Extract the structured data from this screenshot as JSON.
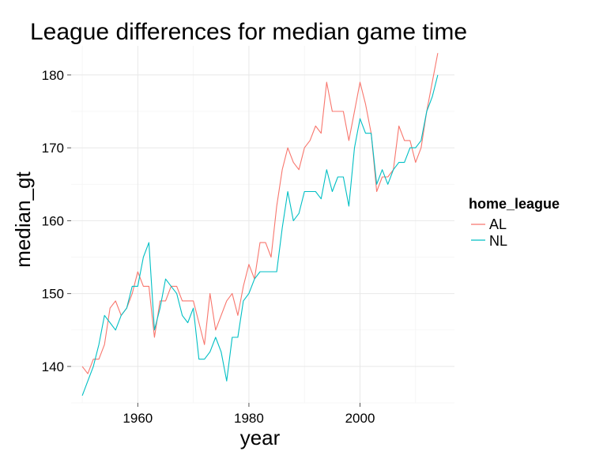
{
  "chart_data": {
    "type": "line",
    "title": "League differences for median game time",
    "xlabel": "year",
    "ylabel": "median_gt",
    "xlim": [
      1948,
      2017
    ],
    "ylim": [
      135,
      184
    ],
    "x_ticks": [
      1960,
      1980,
      2000
    ],
    "y_ticks": [
      140,
      150,
      160,
      170,
      180
    ],
    "grid": true,
    "legend": {
      "title": "home_league",
      "placement": "right"
    },
    "series": [
      {
        "name": "AL",
        "color": "#F8766D",
        "x": [
          1950,
          1951,
          1952,
          1953,
          1954,
          1955,
          1956,
          1957,
          1958,
          1959,
          1960,
          1961,
          1962,
          1963,
          1964,
          1965,
          1966,
          1967,
          1968,
          1969,
          1970,
          1971,
          1972,
          1973,
          1974,
          1975,
          1976,
          1977,
          1978,
          1979,
          1980,
          1981,
          1982,
          1983,
          1984,
          1985,
          1986,
          1987,
          1988,
          1989,
          1990,
          1991,
          1992,
          1993,
          1994,
          1995,
          1996,
          1997,
          1998,
          1999,
          2000,
          2001,
          2002,
          2003,
          2004,
          2005,
          2006,
          2007,
          2008,
          2009,
          2010,
          2011,
          2012,
          2013,
          2014
        ],
        "values": [
          140,
          139,
          141,
          141,
          143,
          148,
          149,
          147,
          148,
          150,
          153,
          151,
          151,
          144,
          149,
          149,
          151,
          151,
          149,
          149,
          149,
          146,
          143,
          150,
          145,
          147,
          149,
          150,
          147,
          151,
          154,
          152,
          157,
          157,
          155,
          162,
          167,
          170,
          168,
          167,
          170,
          171,
          173,
          172,
          179,
          175,
          175,
          175,
          171,
          175,
          179,
          176,
          172,
          164,
          166,
          166,
          167,
          173,
          171,
          171,
          168,
          170,
          175,
          179,
          183
        ]
      },
      {
        "name": "NL",
        "color": "#00BFC4",
        "x": [
          1950,
          1951,
          1952,
          1953,
          1954,
          1955,
          1956,
          1957,
          1958,
          1959,
          1960,
          1961,
          1962,
          1963,
          1964,
          1965,
          1966,
          1967,
          1968,
          1969,
          1970,
          1971,
          1972,
          1973,
          1974,
          1975,
          1976,
          1977,
          1978,
          1979,
          1980,
          1981,
          1982,
          1983,
          1984,
          1985,
          1986,
          1987,
          1988,
          1989,
          1990,
          1991,
          1992,
          1993,
          1994,
          1995,
          1996,
          1997,
          1998,
          1999,
          2000,
          2001,
          2002,
          2003,
          2004,
          2005,
          2006,
          2007,
          2008,
          2009,
          2010,
          2011,
          2012,
          2013,
          2014
        ],
        "values": [
          136,
          138,
          140,
          143,
          147,
          146,
          145,
          147,
          148,
          151,
          151,
          155,
          157,
          145,
          148,
          152,
          151,
          150,
          147,
          146,
          148,
          141,
          141,
          142,
          144,
          142,
          138,
          144,
          144,
          149,
          150,
          152,
          153,
          153,
          153,
          153,
          159,
          164,
          160,
          161,
          164,
          164,
          164,
          163,
          167,
          164,
          166,
          166,
          162,
          170,
          174,
          172,
          172,
          165,
          167,
          165,
          167,
          168,
          168,
          170,
          170,
          171,
          175,
          177,
          180
        ]
      }
    ]
  }
}
